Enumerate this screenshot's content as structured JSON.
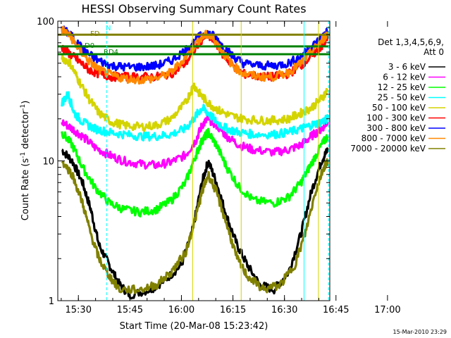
{
  "chart_data": {
    "type": "line",
    "title": "HESSI Observing Summary Count Rates",
    "xlabel": "Start Time (20-Mar-08 15:23:42)",
    "ylabel_main": "Count Rate (s",
    "ylabel_sup1": "-1",
    "ylabel_mid": " detector",
    "ylabel_sup2": "-1",
    "ylabel_end": ")",
    "yscale": "log",
    "ylim": [
      1,
      100
    ],
    "xlim_minutes": [
      15.4,
      16.72
    ],
    "x_ticks": [
      "15:30",
      "15:45",
      "16:00",
      "16:15",
      "16:30",
      "16:45",
      "17:00"
    ],
    "y_ticks": [
      "1",
      "10",
      "100"
    ],
    "legend_header": [
      "Det 1,3,4,5,6,9,",
      "Att 0"
    ],
    "legend": [
      {
        "label": "3 - 6 keV",
        "color": "#000000"
      },
      {
        "label": "6 - 12 keV",
        "color": "#ff00ff"
      },
      {
        "label": "12 - 25 keV",
        "color": "#00ff00"
      },
      {
        "label": "25 - 50 keV",
        "color": "#00ffff"
      },
      {
        "label": "50 - 100 keV",
        "color": "#d4d400"
      },
      {
        "label": "100 - 300 keV",
        "color": "#ff0000"
      },
      {
        "label": "300 - 800 keV",
        "color": "#0000ff"
      },
      {
        "label": "800 - 7000 keV",
        "color": "#ff8800"
      },
      {
        "label": "7000 - 20000 keV",
        "color": "#808000"
      }
    ],
    "flags": [
      {
        "label": "N",
        "color": "#00ffff"
      },
      {
        "label": "FD",
        "color": "#808000"
      },
      {
        "label": "D0",
        "color": "#008000"
      },
      {
        "label": "RD4",
        "color": "#008000"
      }
    ],
    "series": [
      {
        "name": "3 - 6 keV",
        "color": "#000000",
        "points": [
          [
            15.42,
            12
          ],
          [
            15.47,
            10
          ],
          [
            15.52,
            7
          ],
          [
            15.56,
            4.5
          ],
          [
            15.6,
            2.5
          ],
          [
            15.65,
            1.8
          ],
          [
            15.7,
            1.3
          ],
          [
            15.75,
            1.1
          ],
          [
            15.85,
            1.2
          ],
          [
            15.92,
            1.4
          ],
          [
            16.0,
            1.8
          ],
          [
            16.05,
            3
          ],
          [
            16.1,
            7
          ],
          [
            16.13,
            10
          ],
          [
            16.17,
            7
          ],
          [
            16.22,
            4
          ],
          [
            16.27,
            2.5
          ],
          [
            16.32,
            1.8
          ],
          [
            16.38,
            1.3
          ],
          [
            16.45,
            1.2
          ],
          [
            16.52,
            1.6
          ],
          [
            16.58,
            3
          ],
          [
            16.63,
            6
          ],
          [
            16.68,
            10
          ],
          [
            16.71,
            12
          ]
        ]
      },
      {
        "name": "6 - 12 keV",
        "color": "#ff00ff",
        "points": [
          [
            15.42,
            19
          ],
          [
            15.47,
            17
          ],
          [
            15.52,
            15
          ],
          [
            15.58,
            12.5
          ],
          [
            15.65,
            11
          ],
          [
            15.72,
            10
          ],
          [
            15.8,
            9.5
          ],
          [
            15.88,
            9.3
          ],
          [
            15.95,
            9.8
          ],
          [
            16.02,
            11
          ],
          [
            16.07,
            14
          ],
          [
            16.1,
            18
          ],
          [
            16.13,
            20
          ],
          [
            16.17,
            18
          ],
          [
            16.22,
            15
          ],
          [
            16.28,
            13
          ],
          [
            16.35,
            12
          ],
          [
            16.45,
            11.5
          ],
          [
            16.52,
            12
          ],
          [
            16.58,
            13
          ],
          [
            16.63,
            15
          ],
          [
            16.68,
            17
          ],
          [
            16.71,
            19
          ]
        ]
      },
      {
        "name": "12 - 25 keV",
        "color": "#00ff00",
        "points": [
          [
            15.42,
            16
          ],
          [
            15.47,
            13
          ],
          [
            15.52,
            9
          ],
          [
            15.58,
            6.5
          ],
          [
            15.65,
            5
          ],
          [
            15.72,
            4.5
          ],
          [
            15.8,
            4.3
          ],
          [
            15.88,
            4.5
          ],
          [
            15.95,
            5.2
          ],
          [
            16.02,
            7
          ],
          [
            16.07,
            11
          ],
          [
            16.1,
            14
          ],
          [
            16.13,
            16
          ],
          [
            16.17,
            13
          ],
          [
            16.22,
            9
          ],
          [
            16.28,
            6.5
          ],
          [
            16.35,
            5.2
          ],
          [
            16.45,
            5
          ],
          [
            16.52,
            5.5
          ],
          [
            16.58,
            7
          ],
          [
            16.63,
            9.5
          ],
          [
            16.68,
            13
          ],
          [
            16.71,
            15
          ]
        ]
      },
      {
        "name": "25 - 50 keV",
        "color": "#00ffff",
        "points": [
          [
            15.42,
            26
          ],
          [
            15.45,
            30
          ],
          [
            15.48,
            22
          ],
          [
            15.52,
            19
          ],
          [
            15.58,
            17
          ],
          [
            15.65,
            16
          ],
          [
            15.72,
            15.5
          ],
          [
            15.8,
            15
          ],
          [
            15.88,
            15
          ],
          [
            15.95,
            15.5
          ],
          [
            16.02,
            17
          ],
          [
            16.07,
            21
          ],
          [
            16.1,
            24
          ],
          [
            16.13,
            22
          ],
          [
            16.17,
            19
          ],
          [
            16.22,
            17
          ],
          [
            16.28,
            16
          ],
          [
            16.35,
            15.5
          ],
          [
            16.45,
            15.5
          ],
          [
            16.52,
            16
          ],
          [
            16.58,
            17
          ],
          [
            16.63,
            18
          ],
          [
            16.68,
            19
          ],
          [
            16.71,
            20
          ]
        ]
      },
      {
        "name": "50 - 100 keV",
        "color": "#d4d400",
        "points": [
          [
            15.42,
            55
          ],
          [
            15.46,
            50
          ],
          [
            15.5,
            38
          ],
          [
            15.55,
            28
          ],
          [
            15.6,
            22
          ],
          [
            15.66,
            19
          ],
          [
            15.72,
            18
          ],
          [
            15.8,
            17.5
          ],
          [
            15.88,
            18
          ],
          [
            15.95,
            20
          ],
          [
            16.02,
            26
          ],
          [
            16.06,
            35
          ],
          [
            16.09,
            30
          ],
          [
            16.13,
            26
          ],
          [
            16.18,
            23
          ],
          [
            16.24,
            21
          ],
          [
            16.3,
            20
          ],
          [
            16.38,
            19.5
          ],
          [
            16.45,
            19.5
          ],
          [
            16.52,
            20
          ],
          [
            16.58,
            22
          ],
          [
            16.63,
            24
          ],
          [
            16.68,
            28
          ],
          [
            16.71,
            32
          ]
        ]
      },
      {
        "name": "100 - 300 keV",
        "color": "#ff0000",
        "points": [
          [
            15.42,
            65
          ],
          [
            15.46,
            58
          ],
          [
            15.5,
            52
          ],
          [
            15.55,
            45
          ],
          [
            15.6,
            42
          ],
          [
            15.66,
            40
          ],
          [
            15.72,
            40
          ],
          [
            15.8,
            40
          ],
          [
            15.88,
            40
          ],
          [
            15.95,
            42
          ],
          [
            16.02,
            50
          ],
          [
            16.08,
            68
          ],
          [
            16.12,
            80
          ],
          [
            16.16,
            72
          ],
          [
            16.2,
            58
          ],
          [
            16.25,
            48
          ],
          [
            16.3,
            42
          ],
          [
            16.38,
            40
          ],
          [
            16.45,
            40
          ],
          [
            16.52,
            42
          ],
          [
            16.58,
            48
          ],
          [
            16.63,
            56
          ],
          [
            16.68,
            66
          ],
          [
            16.71,
            75
          ]
        ]
      },
      {
        "name": "300 - 800 keV",
        "color": "#0000ff",
        "points": [
          [
            15.42,
            88
          ],
          [
            15.46,
            80
          ],
          [
            15.5,
            68
          ],
          [
            15.55,
            58
          ],
          [
            15.6,
            52
          ],
          [
            15.66,
            48
          ],
          [
            15.72,
            47
          ],
          [
            15.8,
            47
          ],
          [
            15.88,
            48
          ],
          [
            15.95,
            52
          ],
          [
            16.02,
            62
          ],
          [
            16.08,
            76
          ],
          [
            16.12,
            82
          ],
          [
            16.16,
            78
          ],
          [
            16.2,
            66
          ],
          [
            16.25,
            56
          ],
          [
            16.3,
            50
          ],
          [
            16.38,
            48
          ],
          [
            16.45,
            48
          ],
          [
            16.52,
            50
          ],
          [
            16.58,
            56
          ],
          [
            16.63,
            65
          ],
          [
            16.68,
            76
          ],
          [
            16.71,
            85
          ]
        ]
      },
      {
        "name": "800 - 7000 keV",
        "color": "#ff8800",
        "points": [
          [
            15.42,
            88
          ],
          [
            15.46,
            78
          ],
          [
            15.5,
            64
          ],
          [
            15.55,
            52
          ],
          [
            15.6,
            45
          ],
          [
            15.66,
            41
          ],
          [
            15.72,
            39
          ],
          [
            15.8,
            38
          ],
          [
            15.88,
            39
          ],
          [
            15.95,
            43
          ],
          [
            16.02,
            55
          ],
          [
            16.08,
            72
          ],
          [
            16.12,
            80
          ],
          [
            16.16,
            74
          ],
          [
            16.2,
            60
          ],
          [
            16.25,
            48
          ],
          [
            16.3,
            42
          ],
          [
            16.38,
            40
          ],
          [
            16.45,
            40
          ],
          [
            16.52,
            43
          ],
          [
            16.58,
            50
          ],
          [
            16.63,
            60
          ],
          [
            16.68,
            72
          ],
          [
            16.71,
            82
          ]
        ]
      },
      {
        "name": "7000 - 20000 keV",
        "color": "#808000",
        "points": [
          [
            15.42,
            10
          ],
          [
            15.47,
            8
          ],
          [
            15.52,
            5
          ],
          [
            15.56,
            3
          ],
          [
            15.6,
            2
          ],
          [
            15.65,
            1.5
          ],
          [
            15.7,
            1.2
          ],
          [
            15.8,
            1.2
          ],
          [
            15.88,
            1.3
          ],
          [
            15.95,
            1.6
          ],
          [
            16.02,
            2.2
          ],
          [
            16.07,
            4
          ],
          [
            16.1,
            6
          ],
          [
            16.13,
            8
          ],
          [
            16.17,
            6
          ],
          [
            16.22,
            3.5
          ],
          [
            16.27,
            2
          ],
          [
            16.32,
            1.5
          ],
          [
            16.4,
            1.2
          ],
          [
            16.48,
            1.3
          ],
          [
            16.55,
            1.8
          ],
          [
            16.6,
            3
          ],
          [
            16.65,
            6
          ],
          [
            16.69,
            9
          ],
          [
            16.71,
            10
          ]
        ]
      }
    ],
    "steps": [
      {
        "color": "#808000",
        "y": 80,
        "x_start": 15.4,
        "x_end": 16.72
      },
      {
        "color": "#008000",
        "y": 66,
        "x_start": 15.4,
        "x_end": 16.72
      },
      {
        "color": "#008000",
        "y": 58,
        "x_start": 15.4,
        "x_end": 16.72
      }
    ],
    "vlines": [
      {
        "x": 15.638,
        "color": "#00ffff",
        "dashed": true
      },
      {
        "x": 16.595,
        "color": "#00ffff",
        "dashed": false
      },
      {
        "x": 16.715,
        "color": "#00ffff",
        "dashed": true
      },
      {
        "x": 16.055,
        "color": "#d4d400",
        "dashed": false
      },
      {
        "x": 16.29,
        "color": "#d4d400",
        "dashed": false
      },
      {
        "x": 16.665,
        "color": "#d4d400",
        "dashed": false
      }
    ]
  },
  "timestamp": "15-Mar-2010 23:29"
}
